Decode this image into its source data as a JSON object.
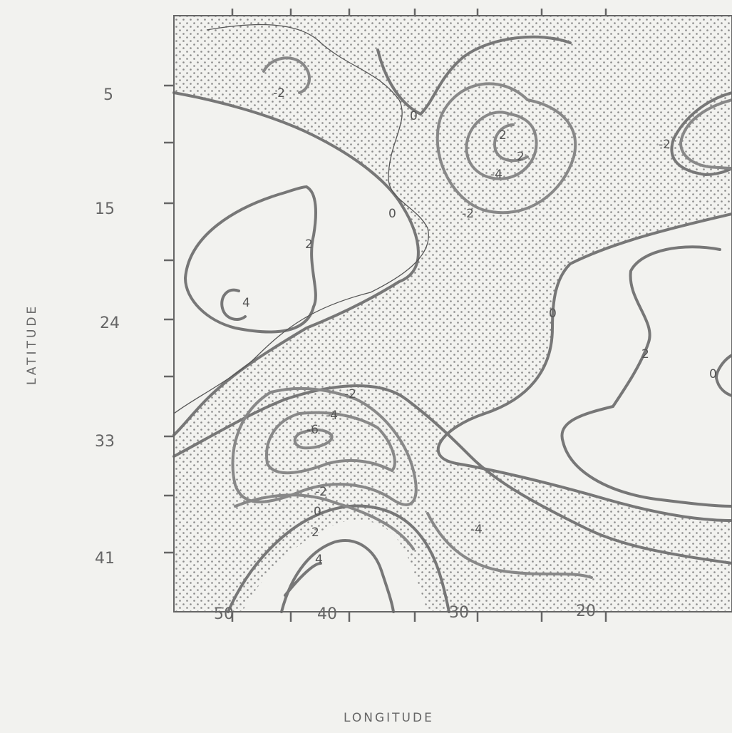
{
  "map": {
    "y_axis_label": "LATITUDE",
    "x_axis_label": "LONGITUDE",
    "latitude_ticks": [
      "5",
      "15",
      "24",
      "33",
      "41"
    ],
    "longitude_ticks": [
      "50",
      "40",
      "30",
      "20"
    ],
    "contour_labels": [
      "-2",
      "0",
      "-2",
      "-4",
      "-2",
      "0",
      "2",
      "4",
      "2",
      "0",
      "0",
      "2",
      "2",
      "-2",
      "-4",
      "-6",
      "-2",
      "0",
      "2",
      "4",
      "-4"
    ],
    "colors": {
      "contour": "#777777",
      "stipple": "#8a8a8a",
      "frame": "#666666",
      "background": "#f2f2ef"
    },
    "shading": "stippled regions indicate negative values"
  }
}
